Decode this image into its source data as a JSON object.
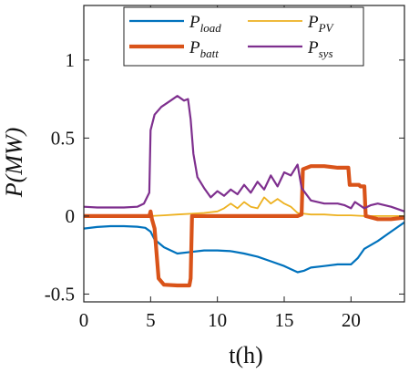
{
  "chart_data": {
    "type": "line",
    "xlabel": "t(h)",
    "ylabel": "P(MW)",
    "xlim": [
      0,
      24
    ],
    "ylim": [
      -0.55,
      1.35
    ],
    "grid": false,
    "legend_placement": "top-center",
    "x_ticks": [
      "0",
      "5",
      "10",
      "15",
      "20"
    ],
    "y_ticks": [
      "-0.5",
      "0",
      "0.5",
      "1"
    ],
    "x_tick_values": [
      0,
      5,
      10,
      15,
      20
    ],
    "y_tick_values": [
      -0.5,
      0,
      0.5,
      1
    ],
    "series": [
      {
        "name": "P_load",
        "legend_main": "P",
        "legend_sub": "load",
        "color": "#0072BD",
        "width": 2.2,
        "x": [
          0,
          1,
          2,
          3,
          4,
          4.6,
          5,
          5.3,
          6,
          7,
          8,
          9,
          10,
          11,
          12,
          13,
          14,
          15,
          15.5,
          16,
          16.5,
          17,
          18,
          19,
          20,
          20.5,
          21,
          22,
          23,
          24
        ],
        "y": [
          -0.08,
          -0.07,
          -0.065,
          -0.065,
          -0.068,
          -0.075,
          -0.1,
          -0.15,
          -0.2,
          -0.24,
          -0.23,
          -0.22,
          -0.22,
          -0.225,
          -0.24,
          -0.26,
          -0.29,
          -0.32,
          -0.34,
          -0.36,
          -0.35,
          -0.33,
          -0.32,
          -0.31,
          -0.31,
          -0.27,
          -0.21,
          -0.16,
          -0.1,
          -0.04
        ]
      },
      {
        "name": "P_PV",
        "legend_main": "P",
        "legend_sub": "PV",
        "color": "#EDB120",
        "width": 1.8,
        "x": [
          0,
          4,
          5,
          6,
          7,
          8,
          9,
          10,
          10.5,
          11,
          11.5,
          12,
          12.5,
          13,
          13.5,
          14,
          14.5,
          15,
          15.5,
          16,
          16.5,
          17,
          18,
          19,
          20,
          21,
          22,
          23,
          24
        ],
        "y": [
          0,
          0,
          0,
          0.005,
          0.01,
          0.015,
          0.02,
          0.03,
          0.05,
          0.08,
          0.05,
          0.09,
          0.06,
          0.05,
          0.12,
          0.08,
          0.11,
          0.08,
          0.06,
          0.02,
          0.015,
          0.01,
          0.01,
          0.005,
          0.005,
          0,
          0,
          0,
          0
        ]
      },
      {
        "name": "P_batt",
        "legend_main": "P",
        "legend_sub": "batt",
        "color": "#D95319",
        "width": 4.2,
        "x": [
          0,
          4.9,
          5.0,
          5.1,
          5.3,
          5.6,
          6,
          7,
          7.9,
          8.0,
          8.1,
          9,
          10,
          11,
          12,
          13,
          14,
          15,
          15.7,
          16.0,
          16.3,
          16.4,
          17,
          18,
          19,
          19.8,
          19.9,
          20.6,
          20.7,
          21.0,
          21.1,
          22,
          23,
          24
        ],
        "y": [
          0,
          0,
          0.03,
          -0.02,
          -0.08,
          -0.4,
          -0.44,
          -0.445,
          -0.445,
          -0.4,
          0,
          0,
          0,
          0,
          0,
          0,
          0,
          0,
          0,
          0,
          0.01,
          0.3,
          0.32,
          0.32,
          0.31,
          0.31,
          0.2,
          0.2,
          0.19,
          0.19,
          0,
          -0.02,
          -0.02,
          -0.01
        ]
      },
      {
        "name": "P_sys",
        "legend_main": "P",
        "legend_sub": "sys",
        "color": "#7E2F8E",
        "width": 2.2,
        "x": [
          0,
          1,
          2,
          3,
          4,
          4.5,
          4.9,
          5.0,
          5.3,
          5.8,
          6.5,
          7,
          7.5,
          7.8,
          8.0,
          8.2,
          8.5,
          9,
          9.5,
          10,
          10.5,
          11,
          11.5,
          12,
          12.5,
          13,
          13.5,
          14,
          14.5,
          15,
          15.5,
          16,
          16.3,
          17,
          18,
          19,
          19.5,
          20.0,
          20.3,
          21,
          21.5,
          22,
          23,
          24
        ],
        "y": [
          0.06,
          0.055,
          0.055,
          0.055,
          0.06,
          0.08,
          0.15,
          0.55,
          0.65,
          0.7,
          0.74,
          0.77,
          0.74,
          0.75,
          0.62,
          0.4,
          0.25,
          0.18,
          0.12,
          0.16,
          0.13,
          0.17,
          0.14,
          0.2,
          0.15,
          0.22,
          0.17,
          0.26,
          0.19,
          0.28,
          0.26,
          0.33,
          0.18,
          0.1,
          0.08,
          0.08,
          0.07,
          0.05,
          0.09,
          0.05,
          0.07,
          0.08,
          0.06,
          0.03
        ]
      }
    ]
  }
}
